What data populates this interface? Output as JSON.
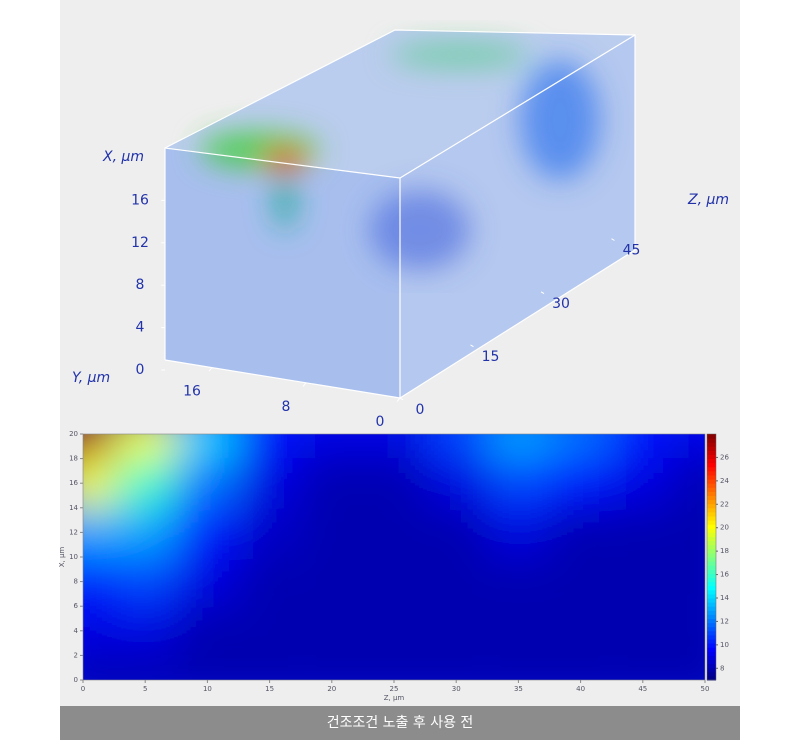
{
  "chart_data": [
    {
      "type": "volume3d",
      "xlabel": "X, μm",
      "ylabel": "Y, μm",
      "zlabel": "Z, μm",
      "xlim": [
        0,
        20
      ],
      "xticks": [
        0,
        4,
        8,
        12,
        16
      ],
      "ylim": [
        0,
        20
      ],
      "yticks": [
        0,
        8,
        16
      ],
      "zlim": [
        0,
        50
      ],
      "zticks": [
        0,
        15,
        30,
        45
      ]
    },
    {
      "type": "contour",
      "xlabel": "Z, μm",
      "ylabel": "X, μm",
      "x": [
        0,
        5,
        10,
        15,
        20,
        25,
        30,
        35,
        40,
        45,
        50
      ],
      "y": [
        0,
        4,
        8,
        12,
        16,
        20
      ],
      "z": [
        [
          8,
          8,
          8,
          8,
          8,
          8,
          8,
          8,
          8,
          8,
          8
        ],
        [
          9,
          9,
          8,
          8,
          8,
          8,
          8,
          8,
          8,
          8,
          8
        ],
        [
          10,
          11,
          9,
          8,
          8,
          8,
          8,
          8,
          8,
          8,
          8
        ],
        [
          13,
          13,
          10,
          8.5,
          8,
          8,
          8,
          9,
          8,
          8,
          8
        ],
        [
          20,
          16,
          12,
          9,
          8,
          8,
          9,
          11,
          10,
          9,
          8
        ],
        [
          27,
          20,
          14,
          10,
          9,
          9,
          11,
          13,
          12,
          10,
          9
        ]
      ],
      "xlim": [
        0,
        50
      ],
      "xticks": [
        0,
        5,
        10,
        15,
        20,
        25,
        30,
        35,
        40,
        45,
        50
      ],
      "ylim": [
        0,
        20
      ],
      "yticks": [
        0,
        2,
        4,
        6,
        8,
        10,
        12,
        14,
        16,
        18,
        20
      ],
      "clim": [
        7,
        28
      ],
      "cticks": [
        8,
        10,
        12,
        14,
        16,
        18,
        20,
        22,
        24,
        26
      ],
      "colormap": "jet"
    }
  ],
  "caption": "건조조건 노출 후 사용 전"
}
